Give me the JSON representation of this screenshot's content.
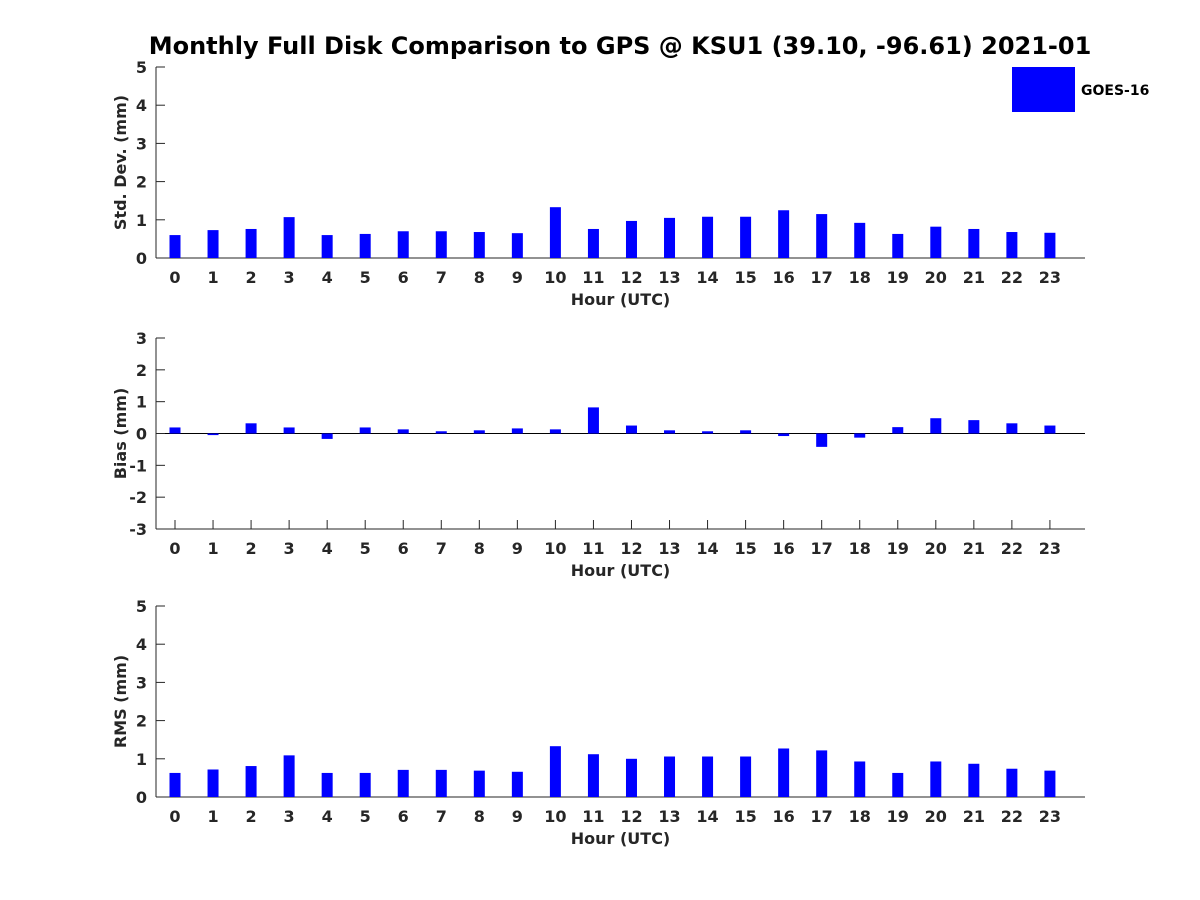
{
  "figure": {
    "title": "Monthly Full Disk Comparison to GPS @ KSU1 (39.10, -96.61) 2021-01",
    "legend": {
      "label": "GOES-16",
      "color": "#0000ff",
      "placement": "top-right"
    }
  },
  "chart_data": [
    {
      "type": "bar",
      "ylabel": "Std. Dev. (mm)",
      "xlabel": "Hour (UTC)",
      "ylim": [
        0,
        5
      ],
      "yticks": [
        0,
        1,
        2,
        3,
        4,
        5
      ],
      "categories": [
        "0",
        "1",
        "2",
        "3",
        "4",
        "5",
        "6",
        "7",
        "8",
        "9",
        "10",
        "11",
        "12",
        "13",
        "14",
        "15",
        "16",
        "17",
        "18",
        "19",
        "20",
        "21",
        "22",
        "23"
      ],
      "series": [
        {
          "name": "GOES-16",
          "values": [
            0.6,
            0.73,
            0.76,
            1.07,
            0.6,
            0.63,
            0.7,
            0.7,
            0.68,
            0.65,
            1.33,
            0.76,
            0.97,
            1.05,
            1.08,
            1.08,
            1.25,
            1.15,
            0.92,
            0.63,
            0.82,
            0.76,
            0.68,
            0.66
          ]
        }
      ],
      "color": "#0000ff"
    },
    {
      "type": "bar",
      "ylabel": "Bias (mm)",
      "xlabel": "Hour (UTC)",
      "ylim": [
        -3,
        3
      ],
      "yticks": [
        -3,
        -2,
        -1,
        0,
        1,
        2,
        3
      ],
      "categories": [
        "0",
        "1",
        "2",
        "3",
        "4",
        "5",
        "6",
        "7",
        "8",
        "9",
        "10",
        "11",
        "12",
        "13",
        "14",
        "15",
        "16",
        "17",
        "18",
        "19",
        "20",
        "21",
        "22",
        "23"
      ],
      "series": [
        {
          "name": "GOES-16",
          "values": [
            0.19,
            -0.05,
            0.32,
            0.19,
            -0.17,
            0.19,
            0.13,
            0.07,
            0.1,
            0.16,
            0.13,
            0.82,
            0.25,
            0.1,
            0.07,
            0.1,
            -0.08,
            -0.42,
            -0.13,
            0.2,
            0.48,
            0.42,
            0.32,
            0.25
          ]
        }
      ],
      "color": "#0000ff"
    },
    {
      "type": "bar",
      "ylabel": "RMS (mm)",
      "xlabel": "Hour (UTC)",
      "ylim": [
        0,
        5
      ],
      "yticks": [
        0,
        1,
        2,
        3,
        4,
        5
      ],
      "categories": [
        "0",
        "1",
        "2",
        "3",
        "4",
        "5",
        "6",
        "7",
        "8",
        "9",
        "10",
        "11",
        "12",
        "13",
        "14",
        "15",
        "16",
        "17",
        "18",
        "19",
        "20",
        "21",
        "22",
        "23"
      ],
      "series": [
        {
          "name": "GOES-16",
          "values": [
            0.63,
            0.72,
            0.81,
            1.09,
            0.63,
            0.63,
            0.71,
            0.71,
            0.69,
            0.66,
            1.33,
            1.12,
            1.0,
            1.06,
            1.06,
            1.06,
            1.27,
            1.22,
            0.93,
            0.63,
            0.93,
            0.87,
            0.74,
            0.69
          ]
        }
      ],
      "color": "#0000ff"
    }
  ]
}
